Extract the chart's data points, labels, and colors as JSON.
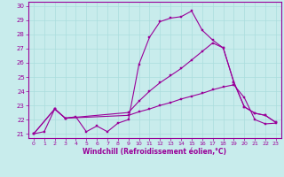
{
  "title": "",
  "xlabel": "Windchill (Refroidissement éolien,°C)",
  "bg_color": "#c8ecec",
  "line_color": "#990099",
  "grid_color": "#aadddd",
  "xlim": [
    -0.5,
    23.5
  ],
  "ylim": [
    20.7,
    30.3
  ],
  "xticks": [
    0,
    1,
    2,
    3,
    4,
    5,
    6,
    7,
    8,
    9,
    10,
    11,
    12,
    13,
    14,
    15,
    16,
    17,
    18,
    19,
    20,
    21,
    22,
    23
  ],
  "yticks": [
    21,
    22,
    23,
    24,
    25,
    26,
    27,
    28,
    29,
    30
  ],
  "line1_x": [
    0,
    1,
    2,
    3,
    4,
    5,
    6,
    7,
    8,
    9,
    10,
    11,
    12,
    13,
    14,
    15,
    16,
    17,
    18,
    19,
    20,
    21,
    22,
    23
  ],
  "line1_y": [
    21.0,
    21.15,
    22.75,
    22.1,
    22.2,
    21.15,
    21.55,
    21.15,
    21.75,
    22.0,
    25.9,
    27.8,
    28.9,
    29.15,
    29.25,
    29.65,
    28.3,
    27.6,
    27.05,
    24.65,
    22.9,
    22.45,
    22.3,
    21.8
  ],
  "line2_x": [
    0,
    2,
    3,
    9,
    10,
    11,
    12,
    13,
    14,
    15,
    16,
    17,
    18,
    19,
    20,
    21,
    22,
    23
  ],
  "line2_y": [
    21.0,
    22.75,
    22.1,
    22.5,
    23.3,
    24.0,
    24.6,
    25.1,
    25.6,
    26.2,
    26.8,
    27.4,
    27.05,
    24.65,
    22.9,
    22.45,
    22.3,
    21.8
  ],
  "line3_x": [
    0,
    2,
    3,
    9,
    10,
    11,
    12,
    13,
    14,
    15,
    16,
    17,
    18,
    19,
    20,
    21,
    22,
    23
  ],
  "line3_y": [
    21.0,
    22.75,
    22.1,
    22.3,
    22.55,
    22.75,
    23.0,
    23.2,
    23.45,
    23.65,
    23.85,
    24.1,
    24.3,
    24.45,
    23.55,
    22.0,
    21.7,
    21.75
  ]
}
